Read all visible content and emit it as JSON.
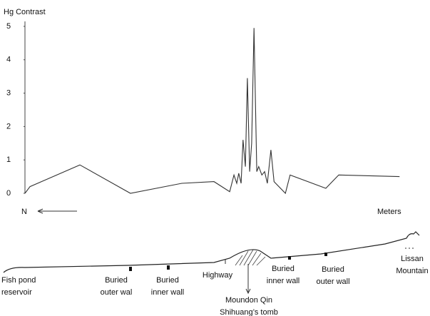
{
  "chart_data": {
    "type": "line",
    "y_label": "Hg Contrast",
    "x_label": "Meters",
    "direction_label": "N",
    "x": [
      0,
      1.3,
      14,
      26.9,
      40,
      48.2,
      52.2,
      53.3,
      54,
      54.5,
      55.1,
      55.6,
      56.2,
      56.7,
      57.3,
      57.8,
      58.4,
      59.1,
      59.6,
      60.4,
      61.1,
      61.8,
      62.7,
      63.5,
      66.4,
      67.6,
      76.7,
      80,
      95.5
    ],
    "values": [
      0,
      0.2,
      0.85,
      0,
      0.3,
      0.35,
      0.05,
      0.55,
      0.3,
      0.6,
      0.3,
      1.6,
      0.8,
      3.45,
      0.65,
      1.5,
      4.95,
      0.65,
      0.8,
      0.55,
      0.65,
      0.3,
      1.3,
      0.35,
      0,
      0.55,
      0.15,
      0.55,
      0.5
    ],
    "color": "#333333",
    "xlim": [
      0,
      100
    ],
    "ylim": [
      0,
      5.2
    ],
    "yticks": [
      0,
      1,
      2,
      3,
      4,
      5
    ]
  },
  "profile": {
    "labels": [
      [
        "Fish pond",
        "reservoir"
      ],
      [
        "Buried",
        "outer wal"
      ],
      [
        "Buried",
        "inner wall"
      ],
      [
        "Highway"
      ],
      [
        "Moundon Qin",
        "Shihuang’s tomb"
      ],
      [
        "Buried",
        "inner wall"
      ],
      [
        "Buried",
        "outer wall"
      ],
      [
        "Lissan",
        "Mountain"
      ]
    ]
  }
}
